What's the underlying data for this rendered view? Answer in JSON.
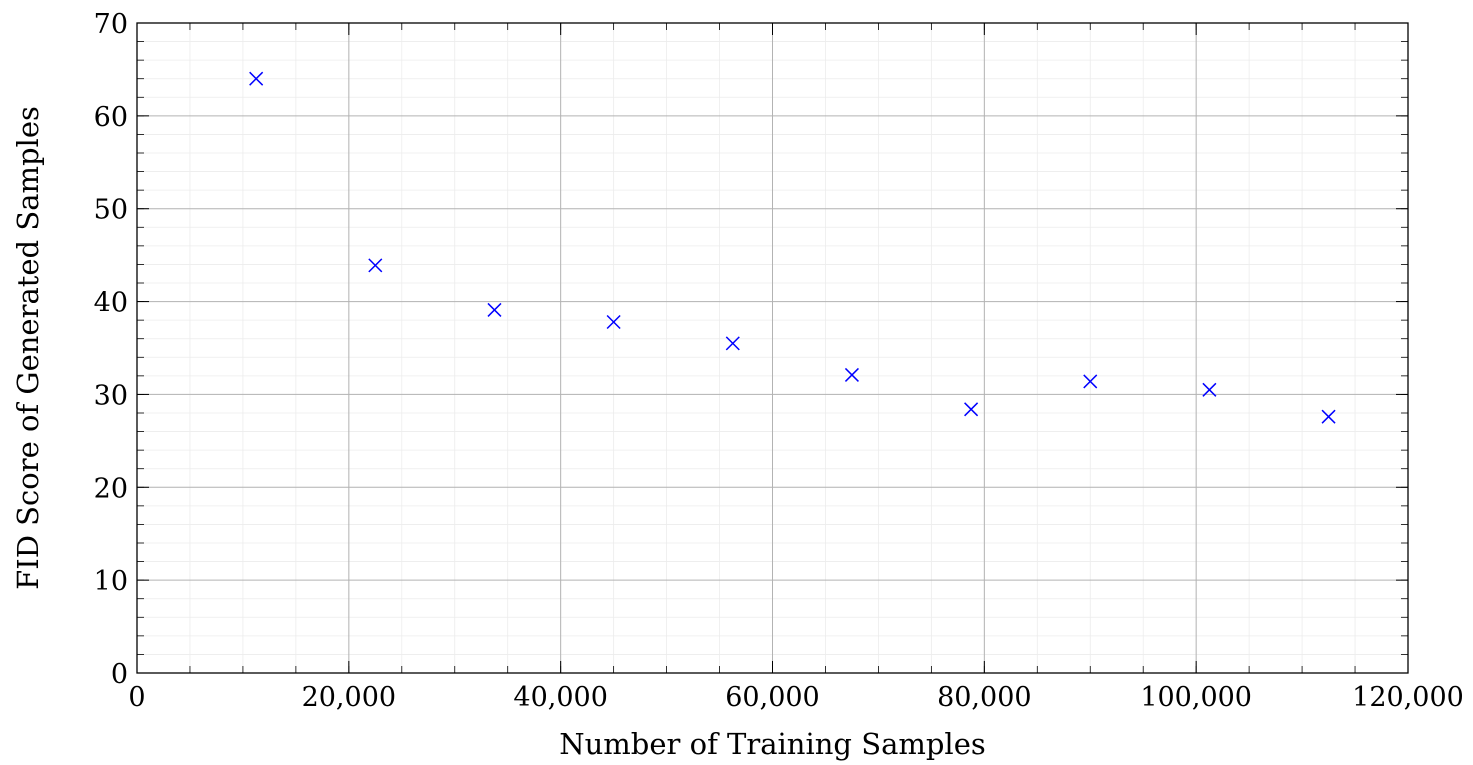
{
  "chart_data": {
    "type": "scatter",
    "title": "",
    "xlabel": "Number of Training Samples",
    "ylabel": "FID Score of Generated Samples",
    "xlim": [
      0,
      120000
    ],
    "ylim": [
      0,
      70
    ],
    "x_ticks": [
      0,
      20000,
      40000,
      60000,
      80000,
      100000,
      120000
    ],
    "x_tick_labels": [
      "0",
      "20,000",
      "40,000",
      "60,000",
      "80,000",
      "100,000",
      "120,000"
    ],
    "y_ticks": [
      0,
      10,
      20,
      30,
      40,
      50,
      60,
      70
    ],
    "y_tick_labels": [
      "0",
      "10",
      "20",
      "30",
      "40",
      "50",
      "60",
      "70"
    ],
    "grid": true,
    "minor_grid": true,
    "marker": "x",
    "marker_color": "#0000ff",
    "series": [
      {
        "x": [
          11250,
          22500,
          33750,
          45000,
          56250,
          67500,
          78750,
          90000,
          101250,
          112500
        ],
        "y": [
          64.0,
          43.9,
          39.1,
          37.8,
          35.5,
          32.1,
          28.4,
          31.4,
          30.5,
          27.6
        ]
      }
    ]
  }
}
